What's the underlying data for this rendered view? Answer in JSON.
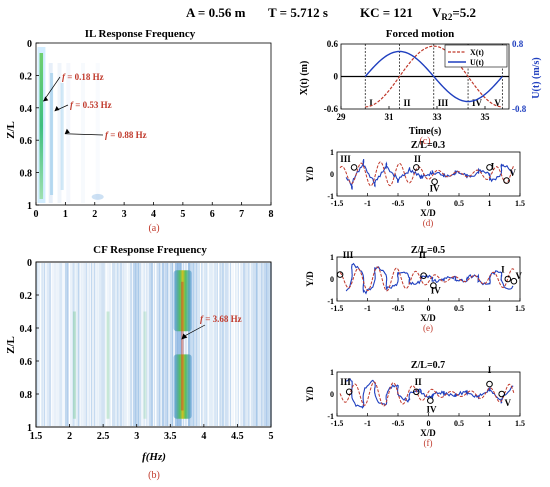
{
  "header": {
    "a": "A = 0.56 m",
    "t": "T = 5.712 s",
    "kc": "KC = 121",
    "vr_main": "V",
    "vr_sub": "R2",
    "vr_val": "=5.2"
  },
  "chart_data": [
    {
      "id": "a",
      "type": "heatmap",
      "title": "IL Response Frequency",
      "xlabel": "",
      "ylabel": "Z/L",
      "xlim": [
        0,
        8
      ],
      "ylim": [
        0,
        1
      ],
      "xticks": [
        "0",
        "1",
        "2",
        "3",
        "4",
        "5",
        "6",
        "7",
        "8"
      ],
      "yticks": [
        "0",
        "0.2",
        "0.4",
        "0.6",
        "0.8",
        "1"
      ],
      "caption": "(a)",
      "annotations": [
        {
          "prefix": "f",
          "text": " = 0.18 Hz",
          "x": 0.18,
          "z": 0.36
        },
        {
          "prefix": "f",
          "text": " = 0.53 Hz",
          "x": 0.53,
          "z": 0.42
        },
        {
          "prefix": "f",
          "text": " = 0.88 Hz",
          "x": 0.88,
          "z": 0.56
        }
      ]
    },
    {
      "id": "b",
      "type": "heatmap",
      "title": "CF Response Frequency",
      "xlabel": "f(Hz)",
      "ylabel": "Z/L",
      "xlim": [
        1.5,
        5
      ],
      "ylim": [
        0,
        1
      ],
      "xticks": [
        "1.5",
        "2",
        "2.5",
        "3",
        "3.5",
        "4",
        "4.5",
        "5"
      ],
      "yticks": [
        "0",
        "0.2",
        "0.4",
        "0.6",
        "0.8",
        "1"
      ],
      "caption": "(b)",
      "annotations": [
        {
          "prefix": "f",
          "text": " = 3.68 Hz",
          "x": 3.68,
          "z": 0.47
        }
      ]
    },
    {
      "id": "c",
      "type": "line",
      "title": "Forced motion",
      "xlabel": "Time(s)",
      "ylabel": "X(t) (m)",
      "ylabel2": "U(t) (m/s)",
      "xlim": [
        29,
        36
      ],
      "ylim": [
        -0.6,
        0.6
      ],
      "ylim2": [
        -0.8,
        0.8
      ],
      "xticks": [
        "29",
        "31",
        "33",
        "35"
      ],
      "yticks": [
        "-0.6",
        "0",
        "0.6"
      ],
      "yticks2": [
        "-0.8",
        "0.8"
      ],
      "period": 5.712,
      "t0": 30.01,
      "amplitude_x": 0.56,
      "amplitude_u": 0.616,
      "series": [
        {
          "name": "X(t)",
          "color": "#c0392b"
        },
        {
          "name": "U(t)",
          "color": "#1f3fbf"
        }
      ],
      "phase_labels": [
        "I",
        "II",
        "III",
        "IV",
        "V"
      ],
      "caption": "(c)"
    },
    {
      "id": "d",
      "type": "line",
      "title": "Z/L=0.3",
      "xlabel": "X/D",
      "ylabel": "Y/D",
      "xlim": [
        -1.5,
        1.5
      ],
      "ylim": [
        -1,
        1
      ],
      "xticks": [
        "-1.5",
        "-1",
        "-0.5",
        "0",
        "0.5",
        "1",
        "1.5"
      ],
      "yticks": [
        "-1",
        "0",
        "1"
      ],
      "phase_labels": [
        "III",
        "II",
        "IV",
        "I",
        "V"
      ],
      "caption": "(d)"
    },
    {
      "id": "e",
      "type": "line",
      "title": "Z/L=0.5",
      "xlabel": "X/D",
      "ylabel": "Y/D",
      "xlim": [
        -1.5,
        1.5
      ],
      "ylim": [
        -1,
        1
      ],
      "xticks": [
        "-1.5",
        "-1",
        "-0.5",
        "0",
        "0.5",
        "1",
        "1.5"
      ],
      "yticks": [
        "-1",
        "0",
        "1"
      ],
      "phase_labels": [
        "III",
        "II",
        "IV",
        "I",
        "V"
      ],
      "caption": "(e)"
    },
    {
      "id": "f",
      "type": "line",
      "title": "Z/L=0.7",
      "xlabel": "X/D",
      "ylabel": "Y/D",
      "xlim": [
        -1.5,
        1.5
      ],
      "ylim": [
        -1,
        1
      ],
      "xticks": [
        "-1.5",
        "-1",
        "-0.5",
        "0",
        "0.5",
        "1",
        "1.5"
      ],
      "yticks": [
        "-1",
        "0",
        "1"
      ],
      "phase_labels": [
        "III",
        "II",
        "IV",
        "I",
        "V"
      ],
      "caption": "(f)"
    }
  ]
}
